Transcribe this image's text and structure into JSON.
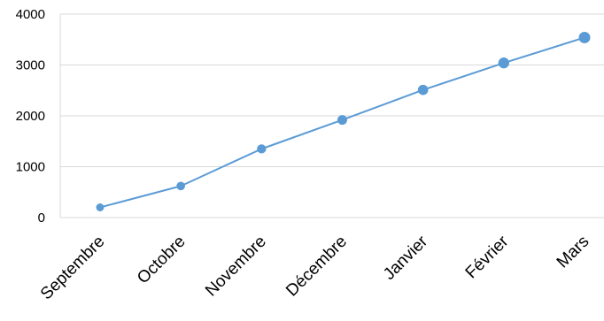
{
  "chart_data": {
    "type": "line",
    "title": "",
    "xlabel": "",
    "ylabel": "",
    "categories": [
      "Septembre",
      "Octobre",
      "Novembre",
      "Décembre",
      "Janvier",
      "Février",
      "Mars"
    ],
    "series": [
      {
        "values": [
          200,
          620,
          1350,
          1920,
          2510,
          3040,
          3540
        ],
        "color": "#5B9BD5"
      }
    ],
    "ylim": [
      0,
      4000
    ],
    "yticks": [
      0,
      1000,
      2000,
      3000,
      4000
    ],
    "grid": true,
    "legend": "none"
  }
}
